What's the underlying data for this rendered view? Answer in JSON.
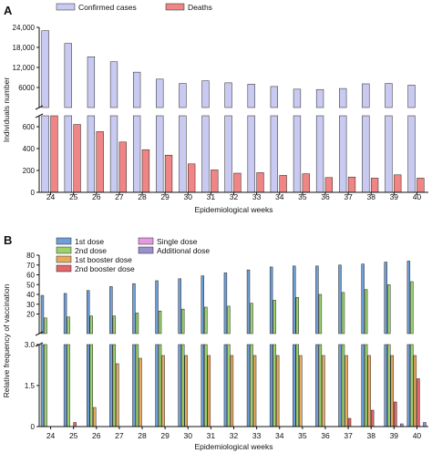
{
  "chart_data": [
    {
      "panel": "A",
      "type": "bar",
      "categories": [
        "24",
        "25",
        "26",
        "27",
        "28",
        "29",
        "30",
        "31",
        "32",
        "33",
        "34",
        "35",
        "36",
        "37",
        "38",
        "39",
        "40"
      ],
      "xlabel": "Epidemiological weeks",
      "ylabel": "Individuals number",
      "axis_break": true,
      "upper_ylim": [
        0,
        24000
      ],
      "upper_ticks": [
        "6000",
        "12,000",
        "18,000",
        "24,000"
      ],
      "upper_tick_values": [
        6000,
        12000,
        18000,
        24000
      ],
      "lower_ylim": [
        0,
        700
      ],
      "lower_ticks": [
        "0",
        "200",
        "400",
        "600"
      ],
      "lower_tick_values": [
        0,
        200,
        400,
        600
      ],
      "legend_placement": "top",
      "series": [
        {
          "name": "Confirmed cases",
          "color": "#c9caf1",
          "values": [
            23000,
            19200,
            15200,
            13700,
            10600,
            8500,
            7200,
            8000,
            7400,
            7000,
            6300,
            5500,
            5400,
            5700,
            7100,
            7200,
            6700
          ]
        },
        {
          "name": "Deaths",
          "color": "#f08585",
          "values": [
            700,
            620,
            555,
            460,
            390,
            340,
            260,
            205,
            175,
            180,
            155,
            170,
            135,
            140,
            130,
            160,
            130
          ]
        }
      ]
    },
    {
      "panel": "B",
      "type": "bar",
      "categories": [
        "24",
        "25",
        "26",
        "27",
        "28",
        "29",
        "30",
        "31",
        "32",
        "33",
        "34",
        "35",
        "36",
        "37",
        "38",
        "39",
        "40"
      ],
      "xlabel": "Epidemiological weeks",
      "ylabel": "Relative frequency of vaccination",
      "axis_break": true,
      "upper_ylim": [
        0,
        80
      ],
      "upper_ticks": [
        "20",
        "30",
        "40",
        "50",
        "60",
        "70",
        "80"
      ],
      "upper_tick_values": [
        20,
        30,
        40,
        50,
        60,
        70,
        80
      ],
      "lower_ylim": [
        0,
        3.0
      ],
      "lower_ticks": [
        "0",
        "1.5",
        "3.0"
      ],
      "lower_tick_values": [
        0,
        1.5,
        3.0
      ],
      "legend_placement": "top",
      "series": [
        {
          "name": "1st dose",
          "color": "#6f9fd8",
          "values": [
            39,
            41,
            44,
            48,
            51,
            54,
            56,
            59,
            62,
            65,
            68,
            69,
            69,
            70,
            71,
            73,
            74
          ]
        },
        {
          "name": "2nd dose",
          "color": "#9bd36a",
          "values": [
            16,
            17,
            18,
            18,
            21,
            23,
            25,
            27,
            28,
            31,
            34,
            37,
            40,
            42,
            45,
            50,
            53
          ]
        },
        {
          "name": "1st booster dose",
          "color": "#e8a95e",
          "values": [
            0,
            0,
            0.7,
            2.3,
            2.5,
            2.6,
            2.6,
            2.6,
            2.6,
            2.6,
            2.6,
            2.6,
            2.6,
            2.6,
            2.6,
            2.6,
            2.6
          ]
        },
        {
          "name": "2nd booster dose",
          "color": "#e0666a",
          "values": [
            0,
            0.15,
            0,
            0,
            0,
            0,
            0,
            0,
            0,
            0,
            0,
            0,
            0,
            0.3,
            0.6,
            0.9,
            1.75
          ]
        },
        {
          "name": "Single dose",
          "color": "#e59ae0",
          "values": [
            0,
            0,
            0,
            0,
            0,
            0,
            0,
            0,
            0,
            0,
            0,
            0,
            0,
            0,
            0,
            0,
            0
          ]
        },
        {
          "name": "Additional dose",
          "color": "#9a8fd1",
          "values": [
            0,
            0,
            0,
            0,
            0,
            0,
            0,
            0,
            0,
            0,
            0,
            0,
            0,
            0,
            0,
            0.1,
            0.15
          ]
        }
      ]
    }
  ]
}
